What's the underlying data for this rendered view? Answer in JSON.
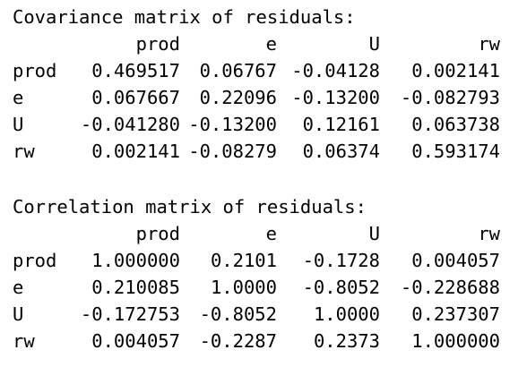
{
  "covariance": {
    "title": "Covariance matrix of residuals:",
    "columns": [
      "prod",
      "e",
      "U",
      "rw"
    ],
    "rows": [
      {
        "name": "prod",
        "values": [
          "0.469517",
          "0.06767",
          "-0.04128",
          "0.002141"
        ]
      },
      {
        "name": "e",
        "values": [
          "0.067667",
          "0.22096",
          "-0.13200",
          "-0.082793"
        ]
      },
      {
        "name": "U",
        "values": [
          "-0.041280",
          "-0.13200",
          "0.12161",
          "0.063738"
        ]
      },
      {
        "name": "rw",
        "values": [
          "0.002141",
          "-0.08279",
          "0.06374",
          "0.593174"
        ]
      }
    ]
  },
  "correlation": {
    "title": "Correlation matrix of residuals:",
    "columns": [
      "prod",
      "e",
      "U",
      "rw"
    ],
    "rows": [
      {
        "name": "prod",
        "values": [
          "1.000000",
          "0.2101",
          "-0.1728",
          "0.004057"
        ]
      },
      {
        "name": "e",
        "values": [
          "0.210085",
          "1.0000",
          "-0.8052",
          "-0.228688"
        ]
      },
      {
        "name": "U",
        "values": [
          "-0.172753",
          "-0.8052",
          "1.0000",
          "0.237307"
        ]
      },
      {
        "name": "rw",
        "values": [
          "0.004057",
          "-0.2287",
          "0.2373",
          "1.000000"
        ]
      }
    ]
  }
}
